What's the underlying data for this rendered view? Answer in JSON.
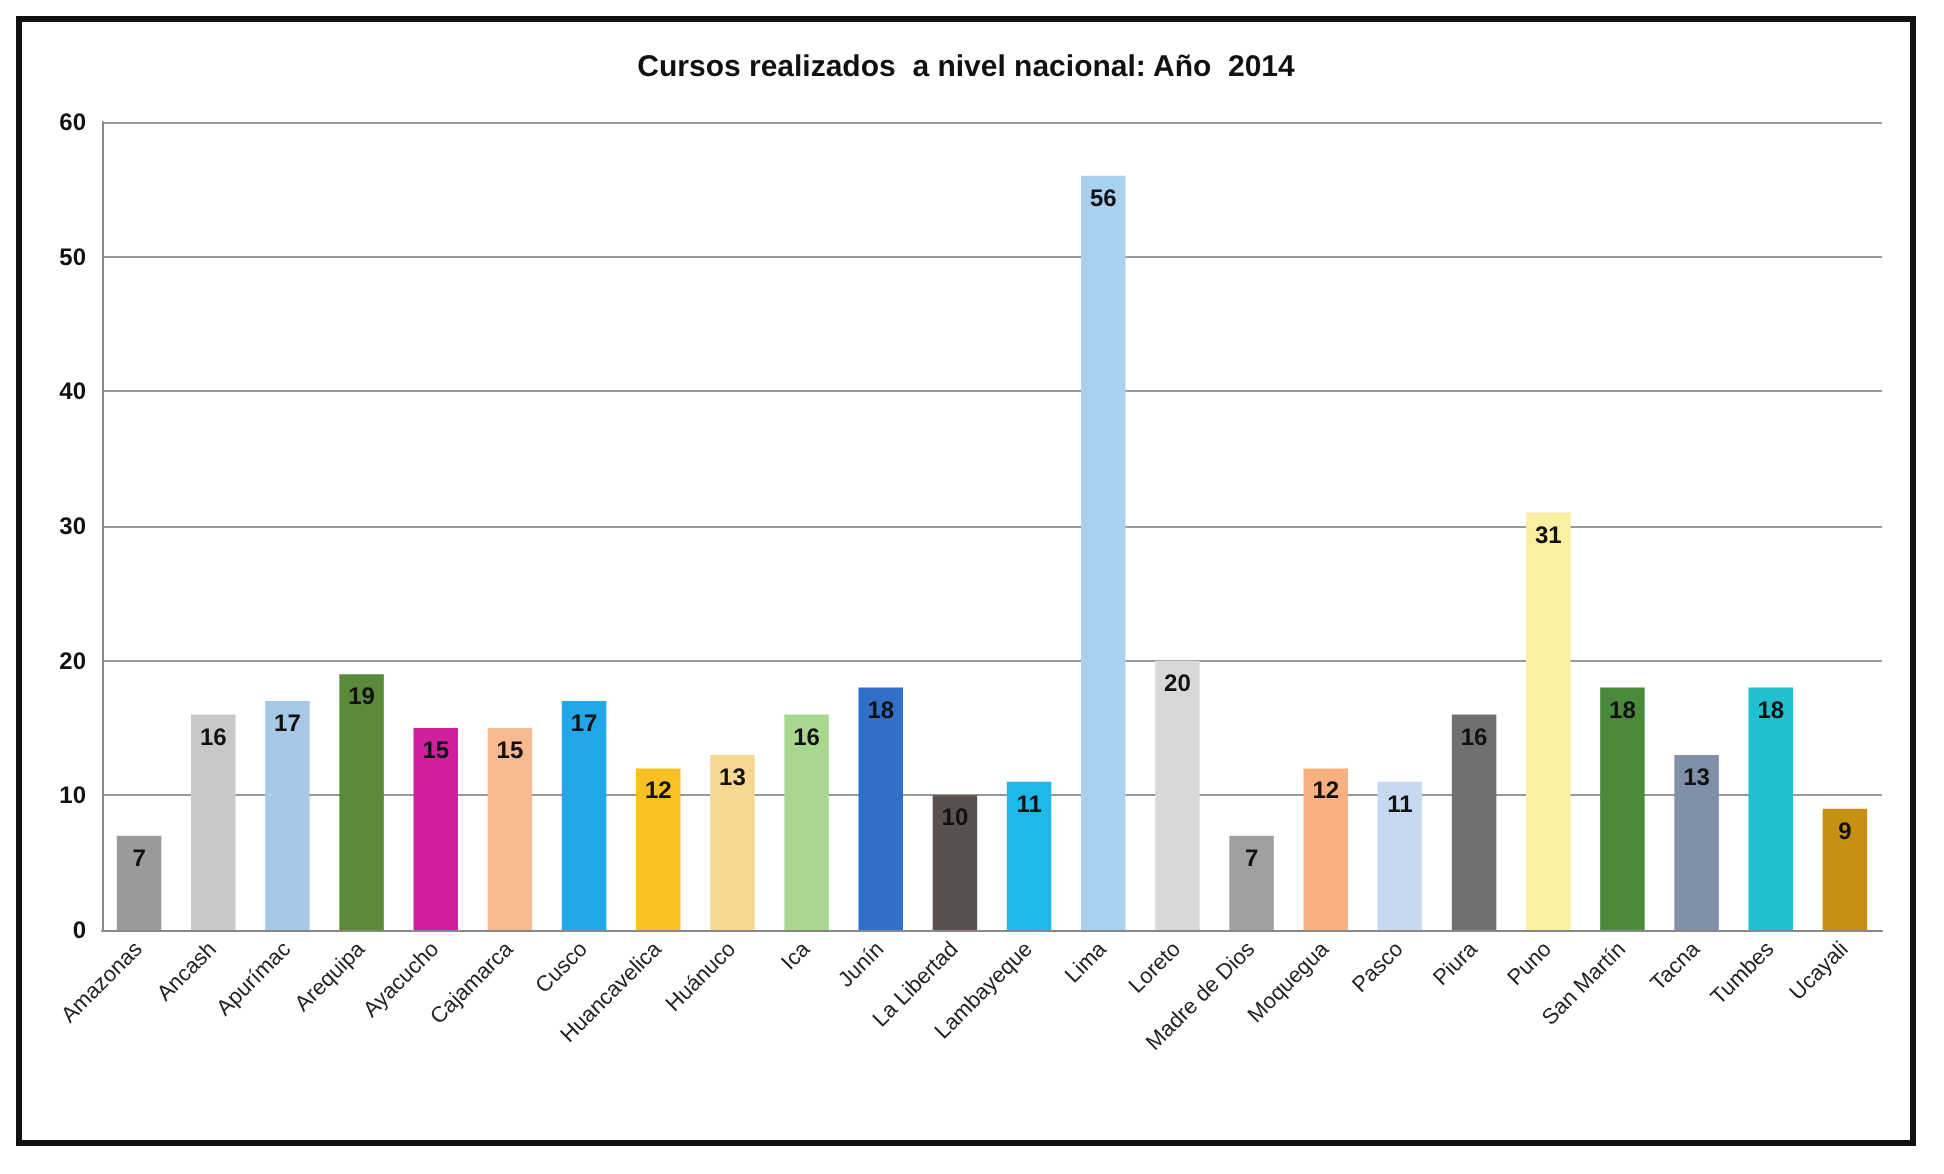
{
  "chart_data": {
    "type": "bar",
    "title": "Cursos realizados  a nivel nacional: Año  2014",
    "categories": [
      "Amazonas",
      "Ancash",
      "Apurímac",
      "Arequipa",
      "Ayacucho",
      "Cajamarca",
      "Cusco",
      "Huancavelica",
      "Huánuco",
      "Ica",
      "Junín",
      "La Libertad",
      "Lambayeque",
      "Lima",
      "Loreto",
      "Madre de Dios",
      "Moquegua",
      "Pasco",
      "Piura",
      "Puno",
      "San Martín",
      "Tacna",
      "Tumbes",
      "Ucayali"
    ],
    "values": [
      7,
      16,
      17,
      19,
      15,
      15,
      17,
      12,
      13,
      16,
      18,
      10,
      11,
      56,
      20,
      7,
      12,
      11,
      16,
      31,
      18,
      13,
      18,
      9
    ],
    "colors": [
      "#9a9a9a",
      "#c8c8c8",
      "#a8c8e8",
      "#5a8a3a",
      "#d020a0",
      "#f8b890",
      "#20a8e8",
      "#f8c020",
      "#f8d890",
      "#a8d890",
      "#3070c8",
      "#5a5050",
      "#20b8e8",
      "#a8d0f0",
      "#d8d8d8",
      "#a0a0a0",
      "#f8b080",
      "#c8d8f0",
      "#707070",
      "#f8f0a0",
      "#4a8a3a",
      "#8090a8",
      "#20c0d0",
      "#c89010"
    ],
    "ylim": [
      0,
      60
    ],
    "yticks": [
      0,
      10,
      20,
      30,
      40,
      50,
      60
    ],
    "grid": "y",
    "data_labels": true
  }
}
